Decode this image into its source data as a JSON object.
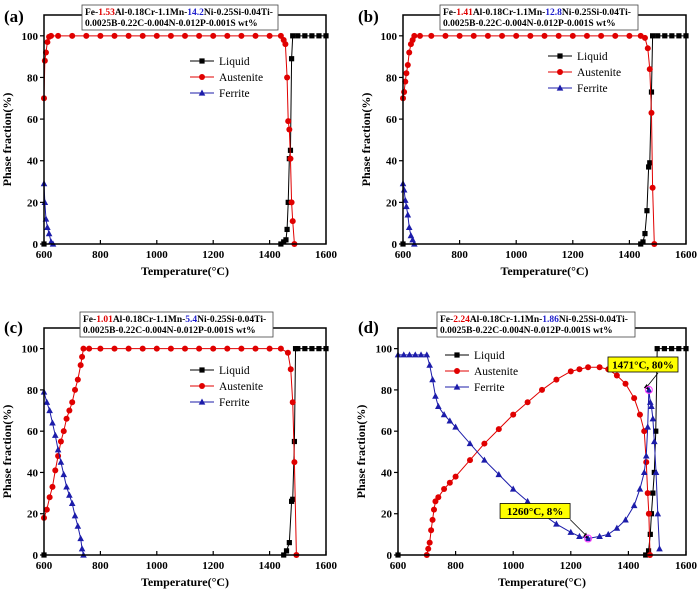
{
  "colors": {
    "liquid": "#000000",
    "austenite": "#e00000",
    "ferrite": "#1c1caa",
    "highlight_red": "#e00000",
    "highlight_blue": "#1c1ccc",
    "annotation_bg": "#ffff00"
  },
  "chart_data": [
    {
      "type": "line",
      "panel_label": "(a)",
      "title": {
        "prefix": "Fe-",
        "al": "1.53",
        "mid": "Al-0.18Cr-1.1Mn-",
        "ni": "14.2",
        "rest": "Ni-0.25Si-0.04Ti-",
        "line2": "0.0025B-0.22C-0.004N-0.012P-0.001S wt%"
      },
      "xlabel": "Temperature(°C)",
      "ylabel": "Phase fraction(%)",
      "xlim": [
        600,
        1600
      ],
      "ylim": [
        0,
        110
      ],
      "xticks": [
        "600",
        "800",
        "1000",
        "1200",
        "1400",
        "1600"
      ],
      "yticks": [
        "0",
        "20",
        "40",
        "60",
        "80",
        "100"
      ],
      "legend": [
        "Liquid",
        "Austenite",
        "Ferrite"
      ],
      "legend_position": "top-center",
      "series": [
        {
          "name": "Liquid",
          "x": [
            600,
            1440,
            1450,
            1458,
            1462,
            1466,
            1470,
            1474,
            1478,
            1482,
            1500,
            1525,
            1550,
            1575,
            1600
          ],
          "y": [
            0,
            0,
            1,
            2,
            7,
            20,
            41,
            45,
            89,
            100,
            100,
            100,
            100,
            100,
            100
          ]
        },
        {
          "name": "Austenite",
          "x": [
            600,
            603,
            607,
            612,
            618,
            625,
            650,
            700,
            750,
            800,
            850,
            900,
            950,
            1000,
            1050,
            1100,
            1150,
            1200,
            1250,
            1300,
            1350,
            1400,
            1440,
            1450,
            1456,
            1462,
            1466,
            1470,
            1474,
            1478,
            1482,
            1488
          ],
          "y": [
            70,
            88,
            92,
            97,
            99.5,
            100,
            100,
            100,
            100,
            100,
            100,
            100,
            100,
            100,
            100,
            100,
            100,
            100,
            100,
            100,
            100,
            100,
            100,
            98,
            96,
            80,
            59,
            55,
            41,
            20,
            11,
            0
          ]
        },
        {
          "name": "Ferrite",
          "x": [
            600,
            603,
            607,
            612,
            618,
            625,
            632
          ],
          "y": [
            29,
            20,
            12,
            8,
            5,
            1,
            0
          ]
        }
      ],
      "annotations": []
    },
    {
      "type": "line",
      "panel_label": "(b)",
      "title": {
        "prefix": "Fe-",
        "al": "1.41",
        "mid": "Al-0.18Cr-1.1Mn-",
        "ni": "12.8",
        "rest": "Ni-0.25Si-0.04Ti-",
        "line2": "0.0025B-0.22C-0.004N-0.012P-0.001S wt%"
      },
      "xlabel": "Temperature(°C)",
      "ylabel": "Phase fraction(%)",
      "xlim": [
        600,
        1600
      ],
      "ylim": [
        0,
        110
      ],
      "xticks": [
        "600",
        "800",
        "1000",
        "1200",
        "1400",
        "1600"
      ],
      "yticks": [
        "0",
        "20",
        "40",
        "60",
        "80",
        "100"
      ],
      "legend": [
        "Liquid",
        "Austenite",
        "Ferrite"
      ],
      "legend_position": "top-center",
      "series": [
        {
          "name": "Liquid",
          "x": [
            600,
            1440,
            1448,
            1455,
            1462,
            1468,
            1472,
            1478,
            1482,
            1500,
            1525,
            1550,
            1575,
            1600
          ],
          "y": [
            0,
            0,
            1,
            5,
            16,
            37,
            39,
            73,
            100,
            100,
            100,
            100,
            100,
            100
          ]
        },
        {
          "name": "Austenite",
          "x": [
            600,
            604,
            608,
            612,
            617,
            622,
            628,
            634,
            640,
            660,
            700,
            750,
            800,
            850,
            900,
            950,
            1000,
            1050,
            1100,
            1150,
            1200,
            1250,
            1300,
            1350,
            1400,
            1440,
            1455,
            1465,
            1472,
            1478,
            1482,
            1488
          ],
          "y": [
            70,
            73,
            78,
            82,
            86,
            92,
            96,
            98,
            100,
            100,
            100,
            100,
            100,
            100,
            100,
            100,
            100,
            100,
            100,
            100,
            100,
            100,
            100,
            100,
            100,
            100,
            99,
            94,
            84,
            63,
            27,
            0
          ]
        },
        {
          "name": "Ferrite",
          "x": [
            600,
            604,
            608,
            612,
            617,
            622,
            628,
            634,
            640
          ],
          "y": [
            29,
            26,
            21,
            18,
            14,
            8,
            4,
            2,
            0
          ]
        }
      ],
      "annotations": []
    },
    {
      "type": "line",
      "panel_label": "(c)",
      "title": {
        "prefix": "Fe-",
        "al": "1.01",
        "mid": "Al-0.18Cr-1.1Mn-",
        "ni": "5.4",
        "rest": "Ni-0.25Si-0.04Ti-",
        "line2": "0.0025B-0.22C-0.004N-0.012P-0.001S wt%"
      },
      "xlabel": "Temperature(°C)",
      "ylabel": "Phase fraction(%)",
      "xlim": [
        600,
        1600
      ],
      "ylim": [
        0,
        110
      ],
      "xticks": [
        "600",
        "800",
        "1000",
        "1200",
        "1400",
        "1600"
      ],
      "yticks": [
        "0",
        "20",
        "40",
        "60",
        "80",
        "100"
      ],
      "legend": [
        "Liquid",
        "Austenite",
        "Ferrite"
      ],
      "legend_position": "top-center",
      "series": [
        {
          "name": "Liquid",
          "x": [
            600,
            1450,
            1460,
            1470,
            1478,
            1482,
            1488,
            1492,
            1500,
            1525,
            1550,
            1575,
            1600
          ],
          "y": [
            0,
            0,
            2,
            6,
            26,
            27,
            55,
            100,
            100,
            100,
            100,
            100,
            100
          ]
        },
        {
          "name": "Austenite",
          "x": [
            600,
            610,
            620,
            630,
            640,
            650,
            660,
            670,
            680,
            690,
            700,
            710,
            720,
            730,
            735,
            740,
            760,
            800,
            850,
            900,
            950,
            1000,
            1050,
            1100,
            1150,
            1200,
            1250,
            1300,
            1350,
            1400,
            1440,
            1465,
            1475,
            1482,
            1488,
            1495
          ],
          "y": [
            18,
            22,
            28,
            33,
            41,
            48,
            55,
            60,
            66,
            70,
            74,
            80,
            85,
            92,
            96,
            100,
            100,
            100,
            100,
            100,
            100,
            100,
            100,
            100,
            100,
            100,
            100,
            100,
            100,
            100,
            100,
            98,
            90,
            74,
            45,
            0
          ]
        },
        {
          "name": "Ferrite",
          "x": [
            600,
            610,
            620,
            630,
            640,
            650,
            660,
            670,
            680,
            690,
            700,
            710,
            720,
            730,
            735,
            740
          ],
          "y": [
            79,
            74,
            70,
            64,
            58,
            51,
            45,
            39,
            33,
            29,
            25,
            19,
            14,
            8,
            3,
            0
          ]
        }
      ],
      "annotations": []
    },
    {
      "type": "line",
      "panel_label": "(d)",
      "title": {
        "prefix": "Fe-",
        "al": "2.24",
        "mid": "Al-0.18Cr-1.1Mn-",
        "ni": "1.86",
        "rest": "Ni-0.25Si-0.04Ti-",
        "line2": "0.0025B-0.22C-0.004N-0.012P-0.001S wt%"
      },
      "xlabel": "Temperature(°C)",
      "ylabel": "Phase fraction(%)",
      "xlim": [
        600,
        1600
      ],
      "ylim": [
        0,
        110
      ],
      "xticks": [
        "600",
        "800",
        "1000",
        "1200",
        "1400",
        "1600"
      ],
      "yticks": [
        "0",
        "20",
        "40",
        "60",
        "80",
        "100"
      ],
      "legend": [
        "Liquid",
        "Austenite",
        "Ferrite"
      ],
      "legend_position": "top-left",
      "series": [
        {
          "name": "Liquid",
          "x": [
            600,
            1460,
            1470,
            1476,
            1480,
            1485,
            1490,
            1495,
            1500,
            1525,
            1550,
            1575,
            1600
          ],
          "y": [
            0,
            0,
            2,
            10,
            20,
            30,
            40,
            60,
            100,
            100,
            100,
            100,
            100
          ]
        },
        {
          "name": "Austenite",
          "x": [
            700,
            705,
            710,
            715,
            720,
            725,
            730,
            740,
            760,
            780,
            800,
            850,
            900,
            950,
            1000,
            1050,
            1100,
            1150,
            1200,
            1230,
            1260,
            1300,
            1330,
            1360,
            1390,
            1420,
            1440,
            1455,
            1462,
            1467,
            1471,
            1475
          ],
          "y": [
            0,
            3,
            6,
            12,
            17,
            22,
            26,
            28,
            32,
            35,
            38,
            46,
            54,
            61,
            68,
            74,
            80,
            85,
            89,
            90,
            91,
            91,
            90,
            87,
            83,
            76,
            68,
            60,
            45,
            30,
            20,
            0
          ]
        },
        {
          "name": "Ferrite",
          "x": [
            600,
            620,
            640,
            660,
            680,
            700,
            710,
            720,
            730,
            740,
            760,
            780,
            800,
            850,
            900,
            950,
            1000,
            1050,
            1100,
            1150,
            1200,
            1230,
            1260,
            1300,
            1330,
            1360,
            1390,
            1420,
            1440,
            1455,
            1462,
            1467,
            1471,
            1476,
            1480,
            1485,
            1490,
            1496,
            1502,
            1508
          ],
          "y": [
            97,
            97,
            97,
            97,
            97,
            97,
            92,
            85,
            77,
            72,
            68,
            65,
            62,
            54,
            46,
            39,
            32,
            26,
            20,
            15,
            11,
            9,
            8,
            9,
            10,
            13,
            17,
            24,
            32,
            40,
            48,
            62,
            80,
            74,
            72,
            66,
            55,
            40,
            20,
            3
          ]
        }
      ],
      "annotations": [
        {
          "text": "1471°C,  80%",
          "x": 1471,
          "y": 80
        },
        {
          "text": "1260°C,  8%",
          "x": 1260,
          "y": 8
        }
      ]
    }
  ]
}
